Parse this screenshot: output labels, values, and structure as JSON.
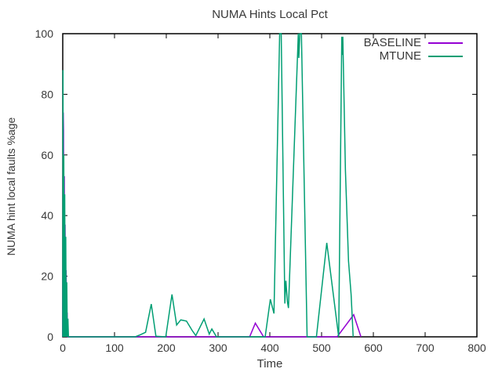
{
  "title": "NUMA Hints Local Pct",
  "legend": {
    "entries": [
      {
        "label": "BASELINE",
        "color": "#9400D3"
      },
      {
        "label": "MTUNE",
        "color": "#009E73"
      }
    ]
  },
  "chart_data": {
    "type": "line",
    "title": "NUMA Hints Local Pct",
    "xlabel": "Time",
    "ylabel": "NUMA hint local faults %age",
    "xlim": [
      0,
      800
    ],
    "ylim": [
      0,
      100
    ],
    "xticks": [
      0,
      100,
      200,
      300,
      400,
      500,
      600,
      700,
      800
    ],
    "yticks": [
      0,
      20,
      40,
      60,
      80,
      100
    ],
    "grid": false,
    "legend_position": "top-right-inside",
    "border_color": "#000000",
    "text_color": "#383838",
    "series": [
      {
        "name": "BASELINE",
        "color": "#9400D3",
        "points": [
          [
            0,
            0
          ],
          [
            1,
            74
          ],
          [
            1.5,
            68
          ],
          [
            2,
            2
          ],
          [
            3,
            53
          ],
          [
            3.5,
            0
          ],
          [
            4.5,
            37
          ],
          [
            5.5,
            0
          ],
          [
            6.5,
            22
          ],
          [
            7.5,
            0
          ],
          [
            8.5,
            8
          ],
          [
            9.5,
            0
          ],
          [
            361,
            0
          ],
          [
            372,
            4.5
          ],
          [
            388,
            0
          ],
          [
            530,
            0
          ],
          [
            562,
            7.3
          ],
          [
            576,
            0
          ]
        ]
      },
      {
        "name": "MTUNE",
        "color": "#009E73",
        "points": [
          [
            0,
            0
          ],
          [
            0.5,
            88
          ],
          [
            1.2,
            0
          ],
          [
            2,
            60
          ],
          [
            2.8,
            0
          ],
          [
            3.8,
            47
          ],
          [
            4.8,
            0
          ],
          [
            5.8,
            33
          ],
          [
            6.8,
            0
          ],
          [
            7.8,
            18
          ],
          [
            8.8,
            0
          ],
          [
            10,
            6
          ],
          [
            11,
            0
          ],
          [
            140,
            0
          ],
          [
            150,
            0.7
          ],
          [
            160,
            1.5
          ],
          [
            171,
            10.8
          ],
          [
            180,
            0.2
          ],
          [
            199,
            0
          ],
          [
            211,
            14
          ],
          [
            220,
            3.9
          ],
          [
            228,
            5.6
          ],
          [
            239,
            5.2
          ],
          [
            250,
            2.1
          ],
          [
            257,
            0.4
          ],
          [
            273,
            5.9
          ],
          [
            283,
            0.9
          ],
          [
            288,
            2.6
          ],
          [
            297,
            0
          ],
          [
            391,
            0
          ],
          [
            401,
            12.4
          ],
          [
            408,
            7.7
          ],
          [
            419,
            100
          ],
          [
            422,
            100
          ],
          [
            429,
            11
          ],
          [
            431,
            18.5
          ],
          [
            434,
            11.5
          ],
          [
            436,
            9.5
          ],
          [
            455,
            100
          ],
          [
            456,
            92
          ],
          [
            458,
            100
          ],
          [
            461,
            100
          ],
          [
            472,
            0
          ],
          [
            490,
            0
          ],
          [
            510,
            31
          ],
          [
            533,
            0
          ],
          [
            539,
            99
          ],
          [
            540,
            93
          ],
          [
            541,
            99
          ],
          [
            546,
            55
          ],
          [
            552,
            25
          ],
          [
            557,
            14
          ],
          [
            561,
            0
          ]
        ]
      }
    ]
  }
}
